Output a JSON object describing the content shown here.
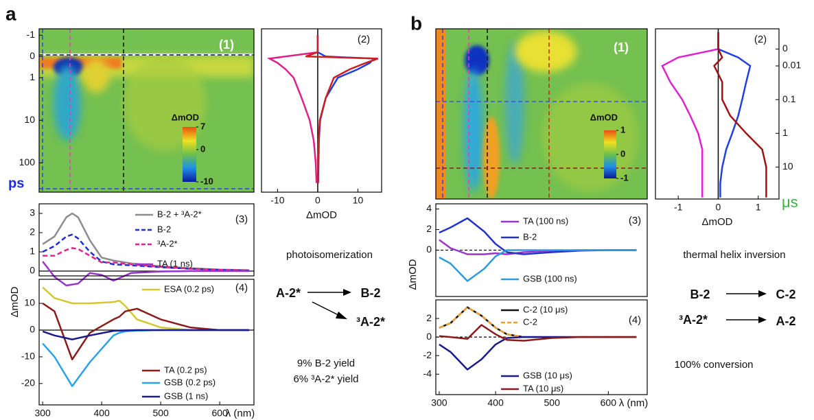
{
  "chart_data": [
    {
      "type": "heatmap",
      "figure_label": "a",
      "panel_label": "(1)",
      "yscale": "symlog",
      "linthresh": 1,
      "ylim": [
        -1.3,
        490
      ],
      "yticks": [
        -1,
        0,
        1,
        10,
        100
      ],
      "y_label": "ps",
      "clim": [
        -10,
        7
      ],
      "cticks": [
        7,
        0,
        -10
      ],
      "colorbar_label": "ΔmOD"
    },
    {
      "type": "kinetics",
      "panel_label": "(2)",
      "yscale": "symlog",
      "linthresh": 1,
      "ylim": [
        -1.3,
        490
      ],
      "xlim": [
        -14,
        15.9
      ],
      "xticks": [
        -10,
        0,
        10
      ],
      "x_label": "ΔmOD",
      "y": [
        -1,
        -0.2,
        0,
        0.1,
        0.3,
        0.6,
        1,
        3,
        10,
        30,
        100,
        300
      ],
      "series": [
        {
          "color": "#e0208a",
          "values": [
            0,
            0,
            -8,
            -12,
            -10,
            -8,
            -6,
            -4,
            -2,
            -1,
            -0.5,
            -0.3
          ]
        },
        {
          "color": "#2040e0",
          "values": [
            0,
            0,
            2,
            14,
            13,
            10,
            5,
            2,
            0.6,
            0.3,
            0.2,
            0.1
          ]
        },
        {
          "color": "#cc2020",
          "values": [
            0,
            0,
            -3,
            15,
            12,
            8,
            4,
            2,
            0.5,
            0.2,
            0.1,
            0.1
          ]
        }
      ]
    },
    {
      "type": "line",
      "panel_label": "(3)",
      "xlim": [
        294,
        658
      ],
      "ylim": [
        -0.25,
        3.5
      ],
      "yticks": [
        0,
        1,
        2,
        3
      ],
      "x": [
        300,
        320,
        340,
        350,
        360,
        380,
        400,
        420,
        450,
        500,
        550,
        600,
        650
      ],
      "series": [
        {
          "name": "B-2 + ³A-2*",
          "color": "#8c8c8c",
          "dash": false,
          "values": [
            1.4,
            1.8,
            2.8,
            3.0,
            2.8,
            1.6,
            0.7,
            0.55,
            0.4,
            0.25,
            0.15,
            0.08,
            0.05
          ]
        },
        {
          "name": "B-2",
          "color": "#1a2ed6",
          "dash": true,
          "values": [
            1.0,
            1.3,
            1.8,
            1.9,
            1.7,
            1.0,
            0.5,
            0.35,
            0.3,
            0.2,
            0.12,
            0.06,
            0.03
          ]
        },
        {
          "name": "³A-2*",
          "color": "#e8208a",
          "dash": true,
          "values": [
            0.8,
            0.8,
            1.1,
            1.2,
            1.15,
            0.8,
            0.45,
            0.45,
            0.35,
            0.22,
            0.12,
            0.06,
            0.04
          ]
        },
        {
          "name": "TA (1 ns)",
          "color": "#9933cc",
          "dash": false,
          "values": [
            0.5,
            -0.3,
            -0.75,
            -0.7,
            -0.65,
            -0.1,
            -0.2,
            -0.5,
            -0.1,
            -0.02,
            0,
            0,
            0
          ]
        }
      ]
    },
    {
      "type": "line",
      "panel_label": "(4)",
      "xlim": [
        294,
        658
      ],
      "ylim": [
        -28,
        19
      ],
      "yticks": [
        -20,
        -10,
        0,
        10
      ],
      "xticks": [
        300,
        400,
        500,
        600
      ],
      "x_label": "λ (nm)",
      "y_label": "ΔmOD",
      "x": [
        300,
        320,
        350,
        380,
        420,
        430,
        440,
        460,
        500,
        550,
        600,
        650
      ],
      "series": [
        {
          "name": "ESA (0.2 ps)",
          "color": "#d4c830",
          "dash": false,
          "values": [
            16,
            12,
            10,
            10,
            10.5,
            11,
            9,
            4,
            1,
            0,
            0,
            0
          ]
        },
        {
          "name": "TA (0.2 ps)",
          "color": "#8b1a1a",
          "dash": false,
          "values": [
            10,
            7,
            -11,
            -1,
            4,
            5,
            7,
            8,
            4,
            1,
            0,
            0
          ]
        },
        {
          "name": "GSB (0.2 ps)",
          "color": "#29a3e8",
          "dash": false,
          "values": [
            -5,
            -10,
            -21,
            -12,
            -2,
            -1,
            -0.5,
            -0.2,
            0,
            0,
            0,
            0
          ]
        },
        {
          "name": "GSB (1 ns)",
          "color": "#1a1a8c",
          "dash": false,
          "values": [
            -0.5,
            -2,
            -3.5,
            -2,
            -0.3,
            -0.2,
            -0.1,
            0,
            0,
            0,
            0,
            0
          ]
        }
      ]
    },
    {
      "type": "heatmap",
      "figure_label": "b",
      "panel_label": "(1)",
      "yscale": "symlog",
      "linthresh": 0.01,
      "ylim": [
        -0.012,
        89
      ],
      "clim": [
        -1,
        1
      ],
      "cticks": [
        1,
        0,
        -1
      ],
      "colorbar_label": "ΔmOD"
    },
    {
      "type": "kinetics",
      "panel_label": "(2)",
      "yscale": "symlog",
      "linthresh": 0.01,
      "ylim": [
        -0.012,
        89
      ],
      "xlim": [
        -1.57,
        1.52
      ],
      "xticks": [
        -1,
        0,
        1
      ],
      "x_label": "ΔmOD",
      "yticks": [
        0,
        0.01,
        0.1,
        1,
        10
      ],
      "y_label": "μs",
      "y": [
        -0.01,
        0,
        0.005,
        0.01,
        0.03,
        0.1,
        0.3,
        1,
        3,
        10,
        30,
        80
      ],
      "series": [
        {
          "color": "#e020d0",
          "values": [
            0,
            0,
            -1.0,
            -1.4,
            -1.2,
            -0.9,
            -0.7,
            -0.5,
            -0.4,
            -0.4,
            -0.4,
            -0.4
          ]
        },
        {
          "color": "#2040e0",
          "values": [
            0,
            0,
            0.5,
            0.8,
            0.7,
            0.6,
            0.5,
            0.35,
            0.2,
            0.1,
            0.05,
            0.05
          ]
        },
        {
          "color": "#a01010",
          "values": [
            0,
            0,
            0.1,
            -0.1,
            0.1,
            0.1,
            0.3,
            0.7,
            1.1,
            1.2,
            1.2,
            1.2
          ]
        }
      ]
    },
    {
      "type": "line",
      "panel_label": "(3)",
      "xlim": [
        294,
        669
      ],
      "ylim": [
        -4.5,
        4.5
      ],
      "yticks": [
        0,
        2,
        4
      ],
      "y_label": "ΔmOD",
      "x": [
        300,
        320,
        350,
        380,
        400,
        420,
        450,
        500,
        550,
        600,
        650
      ],
      "series": [
        {
          "name": "TA (100 ns)",
          "color": "#9933cc",
          "dash": false,
          "values": [
            1,
            0.2,
            -0.4,
            -0.4,
            -0.3,
            -0.4,
            -0.2,
            -0.05,
            0,
            0,
            0
          ]
        },
        {
          "name": "B-2",
          "color": "#2233cc",
          "dash": false,
          "values": [
            1.7,
            2.2,
            3.1,
            1.8,
            0.6,
            -0.2,
            -0.4,
            -0.2,
            -0.05,
            0,
            0
          ]
        },
        {
          "name": "GSB (100 ns)",
          "color": "#2a9be0",
          "dash": false,
          "values": [
            -0.7,
            -1.3,
            -3.0,
            -1.8,
            -0.6,
            0,
            0,
            0,
            0,
            0,
            0
          ]
        }
      ]
    },
    {
      "type": "line",
      "panel_label": "(4)",
      "xlim": [
        294,
        669
      ],
      "ylim": [
        -6.2,
        4.0
      ],
      "yticks": [
        -4,
        -2,
        0,
        2
      ],
      "xticks": [
        300,
        400,
        500,
        600
      ],
      "x_label": "λ (nm)",
      "x": [
        300,
        320,
        350,
        375,
        400,
        420,
        450,
        500,
        550,
        600,
        650
      ],
      "series": [
        {
          "name": "C-2 (10 μs)",
          "color": "#111111",
          "dash": false,
          "values": [
            1,
            1.5,
            3.2,
            2.3,
            1,
            0.3,
            0,
            0,
            0,
            0,
            0
          ]
        },
        {
          "name": "C-2",
          "color": "#f0a030",
          "dash": true,
          "values": [
            1,
            1.5,
            3.2,
            2.3,
            1,
            0.3,
            0,
            0,
            0,
            0,
            0
          ]
        },
        {
          "name": "GSB (10 μs)",
          "color": "#1a1a8c",
          "dash": false,
          "values": [
            -0.8,
            -1.6,
            -3.5,
            -2.4,
            -0.8,
            -0.1,
            0,
            0,
            0,
            0,
            0
          ]
        },
        {
          "name": "TA (10 μs)",
          "color": "#8b1a1a",
          "dash": false,
          "values": [
            0.1,
            0,
            -0.2,
            1.3,
            0.3,
            -0.3,
            -0.4,
            -0.1,
            0,
            0,
            0
          ]
        }
      ]
    }
  ],
  "schemes": {
    "a": {
      "title": "photoisomerization",
      "reactant": "A-2*",
      "product_1": "B-2",
      "product_2": "³A-2*",
      "yield_1": "9% B-2 yield",
      "yield_2": "6% ³A-2* yield"
    },
    "b": {
      "title": "thermal helix inversion",
      "reactant_1": "B-2",
      "product_1": "C-2",
      "reactant_2": "³A-2*",
      "product_2": "A-2",
      "note": "100% conversion"
    }
  }
}
